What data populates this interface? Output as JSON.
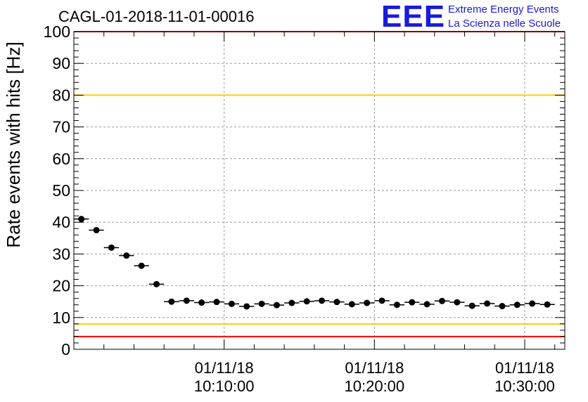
{
  "title": "CAGL-01-2018-11-01-00016",
  "logo": {
    "mark": "EEE",
    "line1": "Extreme Energy Events",
    "line2": "La Scienza nelle Scuole"
  },
  "colors": {
    "red_line": "#ff0000",
    "yellow_line": "#ffcc00",
    "marker": "#000000",
    "grid": "#999999",
    "logo": "#1a1adc"
  },
  "chart_data": {
    "type": "scatter",
    "ylabel": "Rate events with hits [Hz]",
    "ylim": [
      0,
      100
    ],
    "yticks": [
      "0",
      "10",
      "20",
      "30",
      "40",
      "50",
      "60",
      "70",
      "80",
      "90",
      "100"
    ],
    "xlim": [
      "2018-11-01 10:00:00",
      "2018-11-01 10:32:40"
    ],
    "xticks": [
      {
        "time": "2018-11-01 10:10:00",
        "line1": "01/11/18",
        "line2": "10:10:00"
      },
      {
        "time": "2018-11-01 10:20:00",
        "line1": "01/11/18",
        "line2": "10:20:00"
      },
      {
        "time": "2018-11-01 10:30:00",
        "line1": "01/11/18",
        "line2": "10:30:00"
      }
    ],
    "grid": true,
    "reference_lines": [
      {
        "y": 100,
        "color": "red"
      },
      {
        "y": 80,
        "color": "yellow"
      },
      {
        "y": 8,
        "color": "yellow"
      },
      {
        "y": 4,
        "color": "red"
      }
    ],
    "points": [
      {
        "t": "10:00:30",
        "y": 41.0
      },
      {
        "t": "10:01:30",
        "y": 37.5
      },
      {
        "t": "10:02:30",
        "y": 32.0
      },
      {
        "t": "10:03:30",
        "y": 29.5
      },
      {
        "t": "10:04:30",
        "y": 26.3
      },
      {
        "t": "10:05:30",
        "y": 20.5
      },
      {
        "t": "10:06:30",
        "y": 15.0
      },
      {
        "t": "10:07:30",
        "y": 15.3
      },
      {
        "t": "10:08:30",
        "y": 14.7
      },
      {
        "t": "10:09:30",
        "y": 14.9
      },
      {
        "t": "10:10:30",
        "y": 14.3
      },
      {
        "t": "10:11:30",
        "y": 13.5
      },
      {
        "t": "10:12:30",
        "y": 14.3
      },
      {
        "t": "10:13:30",
        "y": 13.9
      },
      {
        "t": "10:14:30",
        "y": 14.6
      },
      {
        "t": "10:15:30",
        "y": 15.1
      },
      {
        "t": "10:16:30",
        "y": 15.3
      },
      {
        "t": "10:17:30",
        "y": 14.9
      },
      {
        "t": "10:18:30",
        "y": 14.2
      },
      {
        "t": "10:19:30",
        "y": 14.6
      },
      {
        "t": "10:20:30",
        "y": 15.3
      },
      {
        "t": "10:21:30",
        "y": 14.0
      },
      {
        "t": "10:22:30",
        "y": 14.8
      },
      {
        "t": "10:23:30",
        "y": 14.2
      },
      {
        "t": "10:24:30",
        "y": 15.2
      },
      {
        "t": "10:25:30",
        "y": 14.8
      },
      {
        "t": "10:26:30",
        "y": 13.7
      },
      {
        "t": "10:27:30",
        "y": 14.4
      },
      {
        "t": "10:28:30",
        "y": 13.6
      },
      {
        "t": "10:29:30",
        "y": 14.0
      },
      {
        "t": "10:30:30",
        "y": 14.4
      },
      {
        "t": "10:31:30",
        "y": 14.1
      }
    ]
  }
}
